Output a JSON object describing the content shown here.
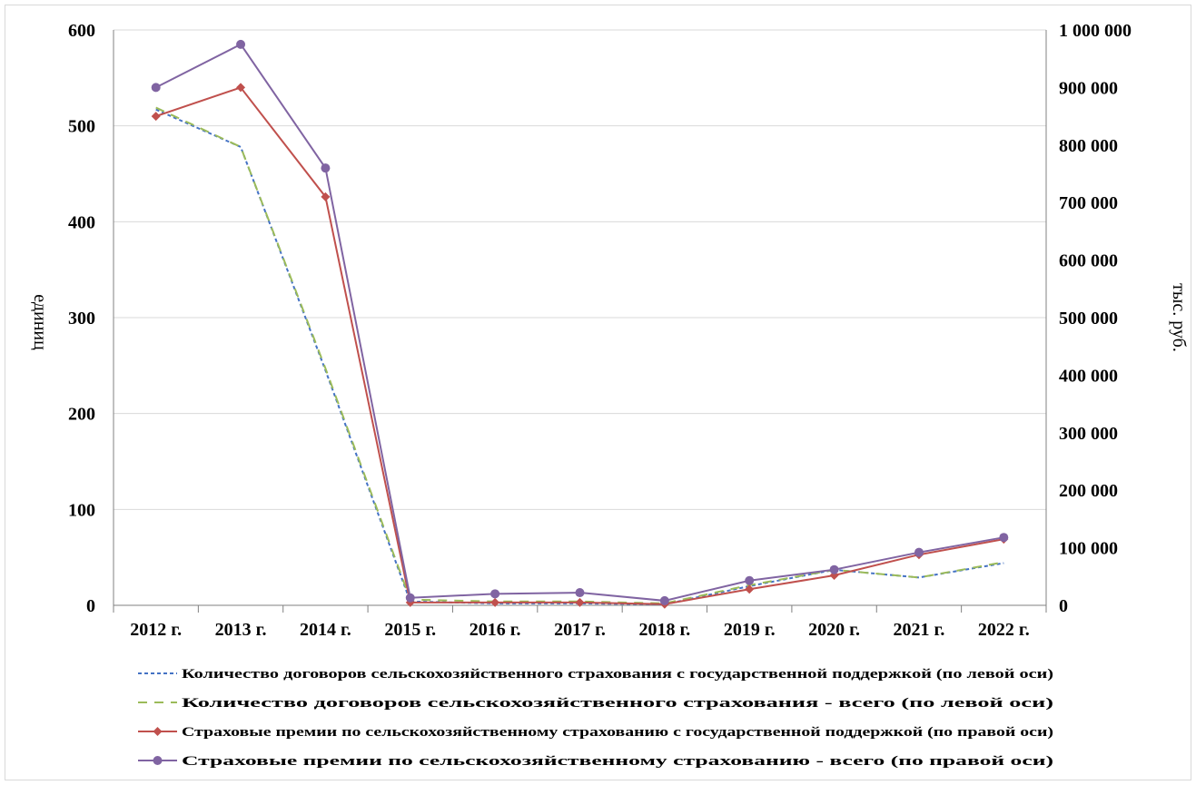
{
  "chart_data": {
    "type": "line",
    "title": "",
    "categories": [
      "2012 г.",
      "2013 г.",
      "2014 г.",
      "2015 г.",
      "2016 г.",
      "2017 г.",
      "2018 г.",
      "2019 г.",
      "2020 г.",
      "2021 г.",
      "2022 г."
    ],
    "y_left": {
      "label": "единиц",
      "range": [
        0,
        600
      ],
      "ticks": [
        "0",
        "100",
        "200",
        "300",
        "400",
        "500",
        "600"
      ],
      "tick_values": [
        0,
        100,
        200,
        300,
        400,
        500,
        600
      ]
    },
    "y_right": {
      "label": "тыс. руб.",
      "range": [
        0,
        1000000
      ],
      "ticks": [
        "0",
        "100 000",
        "200 000",
        "300 000",
        "400 000",
        "500 000",
        "600 000",
        "700 000",
        "800 000",
        "900 000",
        "1 000 000"
      ],
      "tick_values": [
        0,
        100000,
        200000,
        300000,
        400000,
        500000,
        600000,
        700000,
        800000,
        900000,
        1000000
      ]
    },
    "grid": "horizontal",
    "legend_position": "bottom",
    "series": [
      {
        "name": "Количество договоров сельскохозяйственного страхования с государственной поддержкой (по левой оси)",
        "axis": "left",
        "style": "dotted",
        "color": "#4472c4",
        "marker": "none",
        "values": [
          517,
          478,
          245,
          4,
          2,
          2,
          1,
          20,
          37,
          29,
          44
        ]
      },
      {
        "name": "Количество договоров сельскохозяйственного страхования - всего (по левой оси)",
        "axis": "left",
        "style": "dashed",
        "color": "#9bbb59",
        "marker": "none",
        "values": [
          519,
          478,
          247,
          6,
          4,
          4,
          2,
          21,
          37,
          29,
          45
        ]
      },
      {
        "name": "Страховые премии по сельскохозяйственному страхованию с государственной поддержкой (по правой оси)",
        "axis": "right",
        "style": "solid",
        "color": "#c0504d",
        "marker": "diamond",
        "values": [
          850000,
          900000,
          710000,
          5000,
          5000,
          5000,
          2000,
          28000,
          52000,
          88000,
          115000
        ]
      },
      {
        "name": "Страховые премии по сельскохозяйственному страхованию - всего (по правой оси)",
        "axis": "right",
        "style": "solid",
        "color": "#8064a2",
        "marker": "circle",
        "values": [
          900000,
          975000,
          760000,
          13000,
          20000,
          22000,
          8000,
          43000,
          62000,
          92000,
          118000
        ]
      }
    ]
  }
}
